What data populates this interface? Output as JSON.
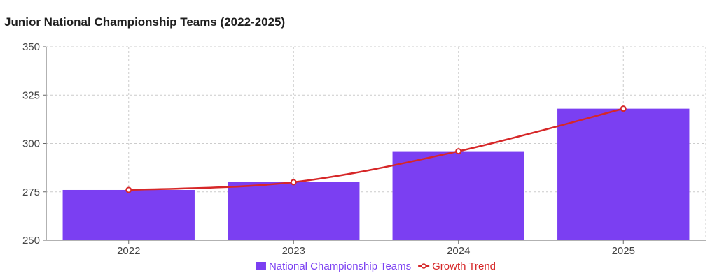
{
  "chart_data": {
    "type": "bar",
    "title": "Junior National Championship Teams (2022-2025)",
    "categories": [
      "2022",
      "2023",
      "2024",
      "2025"
    ],
    "series": [
      {
        "name": "National Championship Teams",
        "type": "bar",
        "values": [
          276,
          280,
          296,
          318
        ],
        "color": "#7b3ff2"
      },
      {
        "name": "Growth Trend",
        "type": "line",
        "values": [
          276,
          280,
          296,
          318
        ],
        "color": "#d62728"
      }
    ],
    "ylim": [
      250,
      350
    ],
    "yticks": [
      250,
      275,
      300,
      325,
      350
    ],
    "grid": true,
    "legend": "bottom-center",
    "xlabel": "",
    "ylabel": ""
  }
}
